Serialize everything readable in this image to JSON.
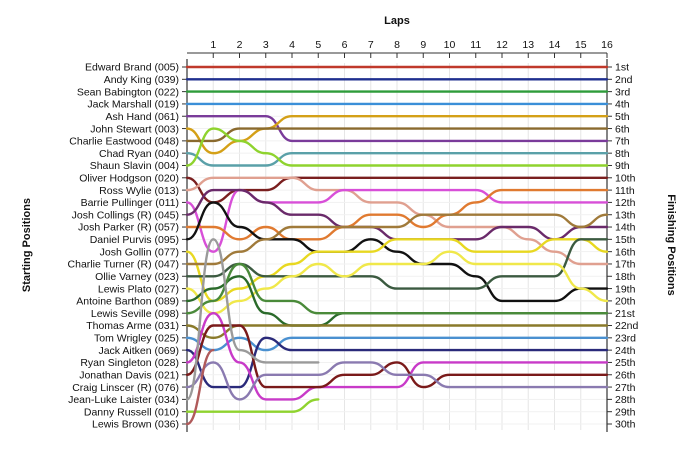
{
  "chart_data": {
    "type": "line",
    "title": "",
    "xlabel": "Laps",
    "ylabel_left": "Starting Positions",
    "ylabel_right": "Finishing Positions",
    "laps": [
      1,
      2,
      3,
      4,
      5,
      6,
      7,
      8,
      9,
      10,
      11,
      12,
      13,
      14,
      15,
      16
    ],
    "drivers": [
      "Edward Brand (005)",
      "Andy King (039)",
      "Sean Babington (022)",
      "Jack Marshall (019)",
      "Ash Hand (061)",
      "John Stewart (003)",
      "Charlie Eastwood (048)",
      "Chad Ryan (040)",
      "Shaun Slavin (004)",
      "Oliver Hodgson (020)",
      "Ross Wylie (013)",
      "Barrie Pullinger (011)",
      "Josh Collings (R) (045)",
      "Josh Parker (R) (057)",
      "Daniel Purvis (095)",
      "Josh Gollin (077)",
      "Charlie Turner (R) (047)",
      "Ollie Varney (023)",
      "Lewis Plato (027)",
      "Antoine Barthon (089)",
      "Lewis Seville (098)",
      "Thomas Arme (031)",
      "Tom Wrigley (025)",
      "Jack Aitken (069)",
      "Ryan Singleton (028)",
      "Jonathan Davis (021)",
      "Craig Linscer (R) (076)",
      "Jean-Luke Laister (034)",
      "Danny Russell (010)",
      "Lewis Brown (036)"
    ],
    "finishing_labels": [
      "1st",
      "2nd",
      "3rd",
      "4th",
      "5th",
      "6th",
      "7th",
      "8th",
      "9th",
      "10th",
      "11th",
      "12th",
      "13th",
      "14th",
      "15th",
      "16th",
      "17th",
      "18th",
      "19th",
      "20th",
      "21st",
      "22nd",
      "23rd",
      "24th",
      "25th",
      "26th",
      "27th",
      "28th",
      "29th",
      "30th"
    ],
    "series": [
      {
        "name": "Edward Brand (005)",
        "color": "#c0392b",
        "positions": [
          1,
          1,
          1,
          1,
          1,
          1,
          1,
          1,
          1,
          1,
          1,
          1,
          1,
          1,
          1,
          1
        ]
      },
      {
        "name": "Andy King (039)",
        "color": "#1f2f8f",
        "positions": [
          2,
          2,
          2,
          2,
          2,
          2,
          2,
          2,
          2,
          2,
          2,
          2,
          2,
          2,
          2,
          2
        ]
      },
      {
        "name": "Sean Babington (022)",
        "color": "#2e9c3a",
        "positions": [
          3,
          3,
          3,
          3,
          3,
          3,
          3,
          3,
          3,
          3,
          3,
          3,
          3,
          3,
          3,
          3
        ]
      },
      {
        "name": "Jack Marshall (019)",
        "color": "#3a8fd8",
        "positions": [
          4,
          4,
          4,
          4,
          4,
          4,
          4,
          4,
          4,
          4,
          4,
          4,
          4,
          4,
          4,
          4
        ]
      },
      {
        "name": "Ash Hand (061)",
        "color": "#7a3b9a",
        "positions": [
          5,
          5,
          5,
          7,
          7,
          7,
          7,
          7,
          7,
          7,
          7,
          7,
          7,
          7,
          7,
          7
        ]
      },
      {
        "name": "John Stewart (003)",
        "color": "#d4a017",
        "positions": [
          8,
          7,
          6,
          5,
          5,
          5,
          5,
          5,
          5,
          5,
          5,
          5,
          5,
          5,
          5,
          5
        ]
      },
      {
        "name": "Charlie Eastwood (048)",
        "color": "#8a6a2e",
        "positions": [
          7,
          6,
          6,
          6,
          6,
          6,
          6,
          6,
          6,
          6,
          6,
          6,
          6,
          6,
          6,
          6
        ]
      },
      {
        "name": "Chad Ryan (040)",
        "color": "#5aa0a8",
        "positions": [
          9,
          9,
          9,
          8,
          8,
          8,
          8,
          8,
          8,
          8,
          8,
          8,
          8,
          8,
          8,
          8
        ]
      },
      {
        "name": "Shaun Slavin (004)",
        "color": "#8fd32e",
        "positions": [
          6,
          7,
          8,
          9,
          9,
          9,
          9,
          9,
          9,
          9,
          9,
          9,
          9,
          9,
          9,
          9
        ]
      },
      {
        "name": "Oliver Hodgson (020)",
        "color": "#7a1f1f",
        "positions": [
          12,
          11,
          11,
          10,
          10,
          10,
          10,
          10,
          10,
          10,
          10,
          10,
          10,
          10,
          10,
          10
        ]
      },
      {
        "name": "Ross Wylie (013)",
        "color": "#e0a090",
        "positions": [
          10,
          10,
          10,
          10,
          11,
          11,
          12,
          12,
          13,
          14,
          14,
          14,
          15,
          16,
          17,
          17
        ]
      },
      {
        "name": "Barrie Pullinger (011)",
        "color": "#d84fd8",
        "positions": [
          16,
          11,
          12,
          12,
          12,
          11,
          11,
          11,
          11,
          11,
          11,
          12,
          12,
          12,
          12,
          12
        ]
      },
      {
        "name": "Josh Collings (R) (045)",
        "color": "#6a2a6a",
        "positions": [
          11,
          11,
          12,
          13,
          13,
          14,
          14,
          15,
          15,
          15,
          15,
          14,
          14,
          15,
          14,
          14
        ]
      },
      {
        "name": "Josh Parker (R) (057)",
        "color": "#e07a30",
        "positions": [
          14,
          15,
          14,
          15,
          15,
          14,
          13,
          13,
          14,
          13,
          12,
          11,
          11,
          11,
          11,
          11
        ]
      },
      {
        "name": "Daniel Purvis (095)",
        "color": "#111111",
        "positions": [
          12,
          14,
          15,
          15,
          16,
          16,
          15,
          16,
          17,
          17,
          18,
          20,
          20,
          20,
          19,
          19
        ]
      },
      {
        "name": "Josh Gollin (077)",
        "color": "#e8d820",
        "positions": [
          20,
          19,
          18,
          17,
          16,
          16,
          16,
          15,
          15,
          15,
          16,
          16,
          16,
          15,
          15,
          16
        ]
      },
      {
        "name": "Charlie Turner (R) (047)",
        "color": "#a07a3a",
        "positions": [
          17,
          16,
          15,
          14,
          14,
          14,
          14,
          14,
          13,
          13,
          13,
          13,
          13,
          13,
          14,
          13
        ]
      },
      {
        "name": "Ollie Varney (023)",
        "color": "#3b5a40",
        "positions": [
          18,
          17,
          18,
          18,
          18,
          18,
          18,
          19,
          19,
          19,
          19,
          18,
          18,
          18,
          15,
          15
        ]
      },
      {
        "name": "Lewis Plato (027)",
        "color": "#f0e84a",
        "positions": [
          21,
          20,
          19,
          18,
          17,
          18,
          17,
          17,
          17,
          16,
          17,
          17,
          17,
          17,
          19,
          20
        ]
      },
      {
        "name": "Antoine Barthon (089)",
        "color": "#2a6a2a",
        "positions": [
          19,
          18,
          21,
          22,
          22,
          21,
          21,
          21,
          21,
          21,
          21,
          21,
          21,
          21,
          21,
          21
        ]
      },
      {
        "name": "Lewis Seville (098)",
        "color": "#4a8a3a",
        "positions": [
          20,
          17,
          20,
          20,
          21,
          21,
          21,
          21,
          21,
          21,
          21,
          21,
          21,
          21,
          21,
          21
        ]
      },
      {
        "name": "Thomas Arme (031)",
        "color": "#8a7a2a",
        "positions": [
          23,
          22,
          22,
          22,
          22,
          22,
          22,
          22,
          22,
          22,
          22,
          22,
          22,
          22,
          22,
          22
        ]
      },
      {
        "name": "Tom Wrigley (025)",
        "color": "#4a90d0",
        "positions": [
          24,
          23,
          24,
          23,
          23,
          23,
          23,
          23,
          23,
          23,
          23,
          23,
          23,
          23,
          23,
          23
        ]
      },
      {
        "name": "Jack Aitken (069)",
        "color": "#2a2a7a",
        "positions": [
          27,
          27,
          23,
          24,
          24,
          24,
          24,
          24,
          24,
          24,
          24,
          24,
          24,
          24,
          24,
          24
        ]
      },
      {
        "name": "Ryan Singleton (028)",
        "color": "#c83ac8",
        "positions": [
          21,
          25,
          28,
          28,
          27,
          27,
          27,
          27,
          25,
          25,
          25,
          25,
          25,
          25,
          25,
          25
        ]
      },
      {
        "name": "Jonathan Davis (021)",
        "color": "#7a1a1a",
        "positions": [
          22,
          22,
          27,
          27,
          27,
          26,
          26,
          25,
          27,
          26,
          26,
          26,
          26,
          26,
          26,
          26
        ]
      },
      {
        "name": "Craig Linscer (R) (076)",
        "color": "#8a7ab0",
        "positions": [
          25,
          28,
          26,
          26,
          26,
          25,
          25,
          26,
          26,
          27,
          27,
          27,
          27,
          27,
          27,
          27
        ]
      },
      {
        "name": "Jean-Luke Laister (034)",
        "color": "#9a9a9a",
        "positions": [
          15,
          24,
          25,
          25,
          25,
          null,
          null,
          null,
          null,
          null,
          null,
          null,
          null,
          null,
          null,
          null
        ]
      },
      {
        "name": "Danny Russell (010)",
        "color": "#8fd32e",
        "positions": [
          29,
          29,
          29,
          29,
          28,
          null,
          null,
          null,
          null,
          null,
          null,
          null,
          null,
          null,
          null,
          null
        ]
      },
      {
        "name": "Lewis Brown (036)",
        "color": "#b05a5a",
        "positions": [
          24,
          null,
          null,
          null,
          null,
          null,
          null,
          null,
          null,
          null,
          null,
          null,
          null,
          null,
          null,
          null
        ]
      }
    ]
  }
}
